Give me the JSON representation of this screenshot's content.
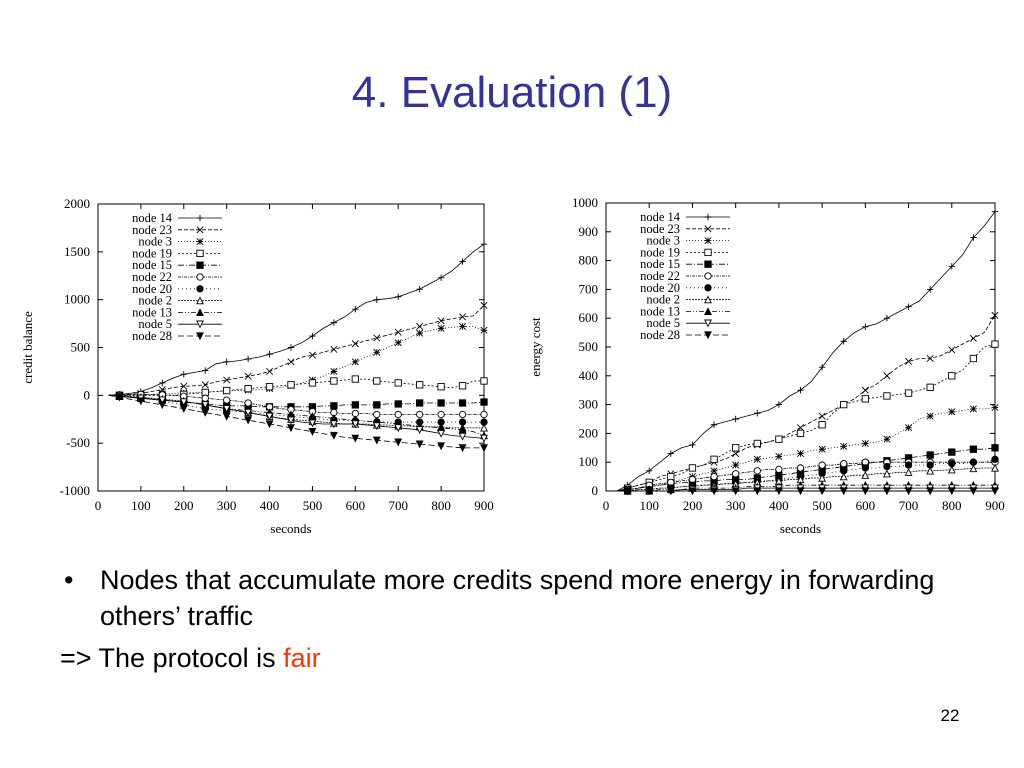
{
  "slide": {
    "title": "4. Evaluation (1)",
    "bullet": "Nodes that accumulate more credits spend more energy in forwarding others’ traffic",
    "conclusion_prefix": "=> The protocol is ",
    "conclusion_highlight": "fair",
    "page_number": "22",
    "colors": {
      "title": "#333399",
      "highlight": "#ff3300"
    }
  },
  "chart_data": [
    {
      "type": "line",
      "title": "",
      "xlabel": "seconds",
      "ylabel": "credit balance",
      "xlim": [
        0,
        900
      ],
      "ylim": [
        -1000,
        2000
      ],
      "xticks": [
        0,
        100,
        200,
        300,
        400,
        500,
        600,
        700,
        800,
        900
      ],
      "yticks": [
        -1000,
        -500,
        0,
        500,
        1000,
        1500,
        2000
      ],
      "legend_position": "top-left",
      "x": [
        25,
        50,
        75,
        100,
        125,
        150,
        175,
        200,
        225,
        250,
        275,
        300,
        325,
        350,
        375,
        400,
        425,
        450,
        475,
        500,
        525,
        550,
        575,
        600,
        625,
        650,
        675,
        700,
        725,
        750,
        775,
        800,
        825,
        850,
        875,
        900
      ],
      "series": [
        {
          "name": "node 14",
          "marker": "+",
          "values": [
            0,
            10,
            20,
            40,
            80,
            130,
            180,
            220,
            240,
            260,
            330,
            350,
            360,
            380,
            400,
            430,
            460,
            500,
            550,
            620,
            700,
            760,
            820,
            900,
            970,
            1000,
            1010,
            1030,
            1070,
            1110,
            1170,
            1230,
            1300,
            1400,
            1500,
            1580
          ]
        },
        {
          "name": "node 23",
          "marker": "x",
          "values": [
            0,
            5,
            10,
            20,
            40,
            60,
            80,
            95,
            100,
            110,
            140,
            160,
            180,
            200,
            220,
            250,
            300,
            350,
            400,
            420,
            450,
            480,
            510,
            540,
            570,
            600,
            630,
            660,
            690,
            720,
            750,
            780,
            800,
            820,
            830,
            940
          ]
        },
        {
          "name": "node 3",
          "marker": "*",
          "values": [
            0,
            0,
            0,
            5,
            10,
            15,
            20,
            25,
            30,
            35,
            40,
            45,
            50,
            55,
            60,
            70,
            80,
            100,
            130,
            160,
            200,
            250,
            300,
            350,
            400,
            450,
            500,
            550,
            600,
            650,
            680,
            700,
            710,
            720,
            720,
            680
          ]
        },
        {
          "name": "node 19",
          "marker": "square-open",
          "values": [
            0,
            0,
            0,
            0,
            0,
            0,
            0,
            10,
            20,
            30,
            40,
            50,
            60,
            70,
            80,
            90,
            100,
            110,
            120,
            130,
            140,
            150,
            160,
            170,
            170,
            150,
            140,
            130,
            120,
            110,
            100,
            90,
            80,
            100,
            150,
            150
          ]
        },
        {
          "name": "node 15",
          "marker": "square-filled",
          "values": [
            0,
            -10,
            -20,
            -30,
            -40,
            -50,
            -60,
            -70,
            -80,
            -90,
            -100,
            -110,
            -110,
            -110,
            -120,
            -120,
            -120,
            -120,
            -120,
            -120,
            -110,
            -110,
            -100,
            -100,
            -100,
            -100,
            -90,
            -90,
            -90,
            -80,
            -80,
            -80,
            -80,
            -80,
            -80,
            -70
          ]
        },
        {
          "name": "node 22",
          "marker": "circle-open",
          "values": [
            0,
            5,
            10,
            10,
            10,
            5,
            0,
            -10,
            -20,
            -30,
            -40,
            -50,
            -60,
            -80,
            -100,
            -120,
            -140,
            -150,
            -160,
            -170,
            -180,
            -180,
            -190,
            -190,
            -190,
            -200,
            -200,
            -200,
            -200,
            -200,
            -200,
            -200,
            -200,
            -200,
            -200,
            -200
          ]
        },
        {
          "name": "node 20",
          "marker": "circle-filled",
          "values": [
            0,
            -10,
            -20,
            -30,
            -40,
            -60,
            -80,
            -100,
            -120,
            -140,
            -150,
            -160,
            -170,
            -180,
            -190,
            -200,
            -210,
            -220,
            -230,
            -240,
            -250,
            -255,
            -260,
            -265,
            -270,
            -275,
            -280,
            -280,
            -280,
            -280,
            -280,
            -280,
            -280,
            -280,
            -280,
            -280
          ]
        },
        {
          "name": "node 2",
          "marker": "triangle-open",
          "values": [
            0,
            -5,
            -10,
            -20,
            -30,
            -40,
            -50,
            -60,
            -80,
            -100,
            -120,
            -140,
            -160,
            -180,
            -200,
            -220,
            -240,
            -250,
            -260,
            -270,
            -280,
            -290,
            -300,
            -300,
            -300,
            -310,
            -310,
            -320,
            -320,
            -330,
            -330,
            -330,
            -340,
            -340,
            -340,
            -340
          ]
        },
        {
          "name": "node 13",
          "marker": "triangle-filled",
          "values": [
            0,
            -10,
            -20,
            -30,
            -40,
            -50,
            -60,
            -70,
            -80,
            -100,
            -120,
            -140,
            -150,
            -160,
            -170,
            -180,
            -190,
            -200,
            -210,
            -220,
            -230,
            -240,
            -250,
            -260,
            -270,
            -280,
            -290,
            -300,
            -310,
            -320,
            -330,
            -340,
            -350,
            -360,
            -380,
            -420
          ]
        },
        {
          "name": "node 5",
          "marker": "triangle-down-open",
          "values": [
            0,
            -10,
            -20,
            -30,
            -40,
            -50,
            -60,
            -70,
            -80,
            -100,
            -120,
            -140,
            -160,
            -180,
            -200,
            -220,
            -240,
            -260,
            -280,
            -290,
            -300,
            -300,
            -300,
            -300,
            -310,
            -320,
            -330,
            -340,
            -350,
            -360,
            -380,
            -400,
            -420,
            -430,
            -440,
            -450
          ]
        },
        {
          "name": "node 28",
          "marker": "triangle-down-filled",
          "values": [
            0,
            -20,
            -40,
            -60,
            -80,
            -100,
            -120,
            -140,
            -160,
            -180,
            -200,
            -220,
            -240,
            -260,
            -280,
            -300,
            -320,
            -340,
            -360,
            -380,
            -400,
            -420,
            -440,
            -450,
            -460,
            -470,
            -480,
            -490,
            -500,
            -510,
            -520,
            -530,
            -540,
            -550,
            -550,
            -550
          ]
        }
      ]
    },
    {
      "type": "line",
      "title": "",
      "xlabel": "seconds",
      "ylabel": "energy cost",
      "xlim": [
        0,
        900
      ],
      "ylim": [
        0,
        1000
      ],
      "xticks": [
        0,
        100,
        200,
        300,
        400,
        500,
        600,
        700,
        800,
        900
      ],
      "yticks": [
        0,
        100,
        200,
        300,
        400,
        500,
        600,
        700,
        800,
        900,
        1000
      ],
      "legend_position": "top-left",
      "x": [
        25,
        50,
        75,
        100,
        125,
        150,
        175,
        200,
        225,
        250,
        275,
        300,
        325,
        350,
        375,
        400,
        425,
        450,
        475,
        500,
        525,
        550,
        575,
        600,
        625,
        650,
        675,
        700,
        725,
        750,
        775,
        800,
        825,
        850,
        875,
        900
      ],
      "series": [
        {
          "name": "node 14",
          "marker": "+",
          "values": [
            0,
            20,
            50,
            70,
            100,
            130,
            150,
            160,
            200,
            230,
            240,
            250,
            260,
            270,
            280,
            300,
            330,
            350,
            380,
            430,
            480,
            520,
            550,
            570,
            580,
            600,
            620,
            640,
            660,
            700,
            740,
            780,
            820,
            880,
            920,
            970
          ]
        },
        {
          "name": "node 23",
          "marker": "x",
          "values": [
            0,
            10,
            20,
            30,
            50,
            60,
            70,
            80,
            90,
            100,
            110,
            130,
            150,
            160,
            170,
            180,
            200,
            220,
            240,
            260,
            280,
            300,
            320,
            350,
            370,
            400,
            430,
            450,
            460,
            460,
            470,
            490,
            510,
            530,
            550,
            610
          ]
        },
        {
          "name": "node 3",
          "marker": "*",
          "values": [
            0,
            5,
            10,
            15,
            20,
            30,
            40,
            50,
            60,
            70,
            80,
            90,
            100,
            110,
            115,
            120,
            125,
            130,
            140,
            145,
            150,
            155,
            160,
            165,
            170,
            180,
            200,
            220,
            250,
            260,
            270,
            275,
            280,
            285,
            285,
            290
          ]
        },
        {
          "name": "node 19",
          "marker": "square-open",
          "values": [
            0,
            10,
            20,
            30,
            40,
            50,
            60,
            80,
            90,
            110,
            130,
            150,
            160,
            165,
            170,
            180,
            190,
            200,
            210,
            230,
            270,
            300,
            310,
            320,
            325,
            330,
            335,
            340,
            350,
            360,
            380,
            400,
            420,
            460,
            500,
            510
          ]
        },
        {
          "name": "node 15",
          "marker": "square-filled",
          "values": [
            0,
            5,
            10,
            15,
            20,
            25,
            30,
            30,
            35,
            35,
            40,
            40,
            40,
            45,
            50,
            55,
            60,
            65,
            70,
            75,
            80,
            85,
            90,
            95,
            100,
            105,
            110,
            115,
            120,
            125,
            130,
            135,
            140,
            145,
            145,
            150
          ]
        },
        {
          "name": "node 22",
          "marker": "circle-open",
          "values": [
            0,
            5,
            10,
            20,
            25,
            30,
            35,
            40,
            45,
            50,
            55,
            60,
            65,
            70,
            75,
            75,
            80,
            80,
            85,
            90,
            90,
            95,
            95,
            100,
            100,
            100,
            100,
            100,
            100,
            100,
            100,
            100,
            100,
            100,
            100,
            100
          ]
        },
        {
          "name": "node 20",
          "marker": "circle-filled",
          "values": [
            0,
            0,
            5,
            5,
            10,
            10,
            15,
            20,
            20,
            25,
            25,
            30,
            30,
            35,
            35,
            40,
            45,
            50,
            55,
            60,
            65,
            70,
            75,
            80,
            80,
            85,
            85,
            90,
            90,
            90,
            95,
            95,
            95,
            100,
            100,
            110
          ]
        },
        {
          "name": "node 2",
          "marker": "triangle-open",
          "values": [
            0,
            0,
            5,
            5,
            10,
            10,
            15,
            15,
            20,
            20,
            25,
            25,
            30,
            30,
            35,
            35,
            40,
            40,
            45,
            45,
            50,
            50,
            55,
            55,
            60,
            60,
            65,
            65,
            70,
            70,
            72,
            74,
            76,
            78,
            80,
            80
          ]
        },
        {
          "name": "node 13",
          "marker": "triangle-filled",
          "values": [
            0,
            0,
            0,
            0,
            5,
            5,
            5,
            10,
            10,
            10,
            10,
            10,
            15,
            15,
            15,
            15,
            20,
            20,
            20,
            20,
            20,
            20,
            20,
            20,
            20,
            20,
            20,
            20,
            20,
            20,
            20,
            20,
            20,
            20,
            20,
            20
          ]
        },
        {
          "name": "node 5",
          "marker": "triangle-down-open",
          "values": [
            0,
            0,
            0,
            0,
            0,
            0,
            5,
            5,
            5,
            5,
            5,
            5,
            10,
            10,
            10,
            10,
            10,
            10,
            10,
            10,
            10,
            10,
            10,
            10,
            10,
            10,
            10,
            10,
            10,
            10,
            10,
            10,
            10,
            10,
            10,
            10
          ]
        },
        {
          "name": "node 28",
          "marker": "triangle-down-filled",
          "values": [
            0,
            0,
            0,
            0,
            0,
            0,
            0,
            0,
            0,
            0,
            0,
            0,
            0,
            0,
            0,
            0,
            0,
            0,
            0,
            0,
            0,
            0,
            0,
            0,
            0,
            0,
            0,
            0,
            0,
            0,
            0,
            0,
            0,
            0,
            0,
            0
          ]
        }
      ]
    }
  ]
}
